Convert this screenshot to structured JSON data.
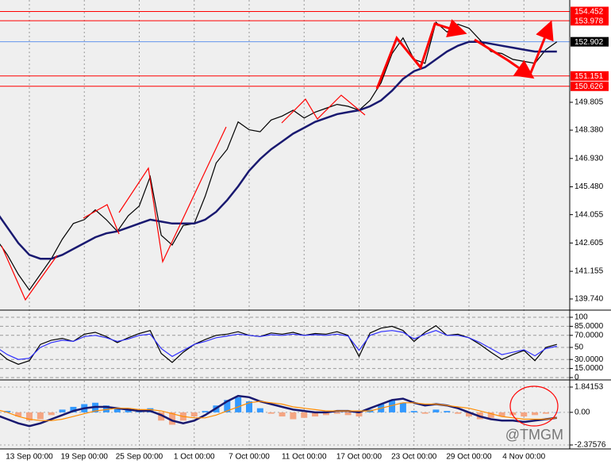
{
  "chart_data": [
    {
      "type": "line",
      "watermark": "@TMGM",
      "categories": [
        null,
        null,
        null,
        "13 Sep 00:00",
        null,
        null,
        null,
        null,
        "19 Sep 00:00",
        null,
        null,
        null,
        null,
        "25 Sep 00:00",
        null,
        null,
        null,
        null,
        "1 Oct 00:00",
        null,
        null,
        null,
        null,
        "7 Oct 00:00",
        null,
        null,
        null,
        null,
        "11 Oct 00:00",
        null,
        null,
        null,
        null,
        "17 Oct 00:00",
        null,
        null,
        null,
        null,
        "23 Oct 00:00",
        null,
        null,
        null,
        null,
        "29 Oct 00:00",
        null,
        null,
        null,
        null,
        "4 Nov 00:00",
        null,
        null,
        null
      ],
      "series": [
        {
          "color": "#000000",
          "values": [
            142.8,
            142.0,
            141.0,
            140.2,
            141.0,
            141.8,
            142.8,
            143.6,
            143.8,
            144.3,
            143.8,
            143.2,
            144.0,
            144.5,
            146.0,
            143.0,
            142.5,
            143.5,
            143.6,
            145.0,
            146.7,
            147.4,
            148.8,
            148.4,
            148.3,
            148.9,
            149.1,
            149.4,
            149.0,
            149.3,
            149.5,
            149.7,
            149.6,
            149.4,
            149.9,
            150.8,
            152.3,
            153.1,
            152.0,
            151.8,
            153.9,
            153.4,
            153.8,
            153.6,
            153.0,
            152.4,
            152.3,
            152.0,
            151.9,
            151.8,
            152.5,
            152.9
          ]
        },
        {
          "color": "#191970",
          "values": [
            144.2,
            143.4,
            142.6,
            142.0,
            141.8,
            141.8,
            142.0,
            142.3,
            142.6,
            142.9,
            143.1,
            143.2,
            143.4,
            143.6,
            143.8,
            143.7,
            143.6,
            143.6,
            143.6,
            143.8,
            144.2,
            144.8,
            145.5,
            146.3,
            146.9,
            147.4,
            147.8,
            148.2,
            148.5,
            148.8,
            149.0,
            149.2,
            149.3,
            149.4,
            149.6,
            149.9,
            150.4,
            151.0,
            151.4,
            151.6,
            152.0,
            152.4,
            152.7,
            152.9,
            152.9,
            152.8,
            152.7,
            152.6,
            152.5,
            152.4,
            152.4,
            152.4
          ]
        }
      ],
      "ylim": [
        139.21,
        155.04
      ],
      "yticks": [
        {
          "value": 139.74,
          "label": "139.740"
        },
        141.155,
        142.605,
        144.055,
        {
          "value": 145.48,
          "label": "145.480"
        },
        {
          "value": 146.93,
          "label": "146.930"
        },
        {
          "value": 148.38,
          "label": "148.380"
        },
        149.805
      ],
      "levels": [
        154.452,
        153.978,
        152.902,
        151.151,
        150.626
      ],
      "level_colors": [
        "#ff0000",
        "#ff0000",
        "#6495ed",
        "#ff0000",
        "#ff0000"
      ],
      "level_label_colors": [
        "#ff0000",
        "#ff0000",
        "#000000",
        "#ff0000",
        "#ff0000"
      ]
    },
    {
      "type": "line",
      "series": [
        {
          "color": "#000000",
          "values": [
            45,
            30,
            22,
            28,
            55,
            62,
            65,
            60,
            72,
            75,
            68,
            58,
            66,
            73,
            78,
            40,
            25,
            42,
            55,
            63,
            70,
            72,
            76,
            70,
            68,
            74,
            72,
            75,
            70,
            73,
            72,
            76,
            70,
            35,
            74,
            82,
            85,
            78,
            60,
            75,
            86,
            70,
            72,
            66,
            55,
            42,
            30,
            38,
            45,
            28,
            50,
            55
          ]
        },
        {
          "color": "#3030ff",
          "values": [
            50,
            38,
            30,
            32,
            50,
            58,
            62,
            60,
            68,
            70,
            66,
            60,
            64,
            70,
            72,
            48,
            35,
            45,
            55,
            60,
            66,
            69,
            72,
            70,
            68,
            71,
            70,
            72,
            70,
            71,
            70,
            72,
            69,
            45,
            70,
            76,
            78,
            75,
            64,
            72,
            78,
            70,
            70,
            66,
            58,
            48,
            38,
            42,
            46,
            36,
            48,
            52
          ]
        }
      ],
      "ylim": [
        0,
        100
      ],
      "yticks": [
        0,
        {
          "value": 15,
          "label": "15.0000"
        },
        {
          "value": 30,
          "label": "30.0000"
        },
        50,
        {
          "value": 70,
          "label": "70.0000"
        },
        {
          "value": 85,
          "label": "85.0000"
        },
        100
      ]
    },
    {
      "type": "bar",
      "values": [
        0.3,
        0.1,
        -0.3,
        -0.6,
        -0.5,
        -0.2,
        0.2,
        0.4,
        0.6,
        0.7,
        0.5,
        0.3,
        0.2,
        0.1,
        0.3,
        -0.6,
        -0.9,
        -0.6,
        -0.3,
        0.1,
        0.5,
        0.9,
        1.1,
        0.8,
        0.3,
        -0.1,
        -0.3,
        -0.5,
        -0.4,
        -0.3,
        -0.2,
        -0.1,
        -0.2,
        -0.3,
        0.2,
        0.6,
        0.9,
        0.7,
        0.1,
        -0.1,
        0.2,
        0.1,
        -0.1,
        -0.3,
        -0.5,
        -0.4,
        -0.3,
        -0.2,
        -0.3,
        -0.2,
        -0.1,
        0.0
      ],
      "up_color": "#3399ff",
      "down_color": "#f4a582",
      "series": [
        {
          "color": "#191970",
          "values": [
            -0.2,
            -0.5,
            -0.8,
            -1.0,
            -0.8,
            -0.5,
            -0.2,
            0.1,
            0.3,
            0.4,
            0.4,
            0.3,
            0.2,
            0.1,
            0.1,
            -0.2,
            -0.6,
            -0.8,
            -0.6,
            -0.2,
            0.3,
            0.8,
            1.2,
            1.1,
            0.8,
            0.6,
            0.4,
            0.2,
            0.1,
            0.0,
            0.0,
            0.1,
            0.1,
            0.0,
            0.3,
            0.6,
            0.9,
            1.0,
            0.7,
            0.5,
            0.6,
            0.5,
            0.3,
            0.0,
            -0.3,
            -0.5,
            -0.6,
            -0.6,
            -0.7,
            -0.6,
            -0.5,
            -0.4
          ]
        },
        {
          "color": "#ff8c00",
          "values": [
            0.2,
            0.0,
            -0.3,
            -0.5,
            -0.6,
            -0.6,
            -0.5,
            -0.3,
            -0.1,
            0.1,
            0.2,
            0.3,
            0.3,
            0.2,
            0.2,
            0.1,
            -0.1,
            -0.3,
            -0.4,
            -0.4,
            -0.2,
            0.1,
            0.4,
            0.7,
            0.8,
            0.7,
            0.6,
            0.4,
            0.3,
            0.2,
            0.1,
            0.1,
            0.1,
            0.1,
            0.1,
            0.3,
            0.5,
            0.7,
            0.7,
            0.6,
            0.6,
            0.5,
            0.4,
            0.3,
            0.1,
            -0.1,
            -0.3,
            -0.4,
            -0.5,
            -0.5,
            -0.5,
            -0.4
          ]
        }
      ],
      "ylim": [
        -2.37576,
        1.84153
      ],
      "yticks": [
        -2.37576,
        {
          "value": 0,
          "label": "0.00"
        },
        1.84153
      ]
    }
  ]
}
